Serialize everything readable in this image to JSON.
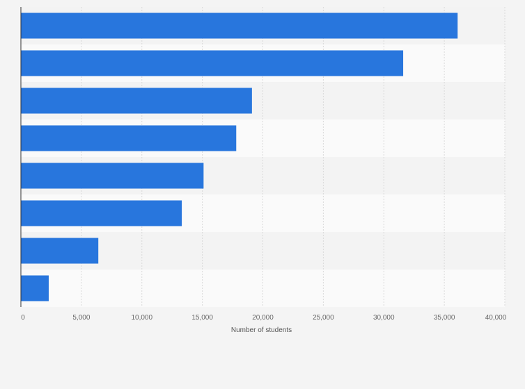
{
  "chart_data": {
    "type": "bar",
    "orientation": "horizontal",
    "categories": [
      "",
      "",
      "",
      "",
      "",
      "",
      "",
      ""
    ],
    "values": [
      36100,
      31600,
      19100,
      17800,
      15100,
      13300,
      6400,
      2300
    ],
    "xlabel": "Number of students",
    "ylabel": "",
    "xlim": [
      0,
      40000
    ],
    "xticks": [
      0,
      5000,
      10000,
      15000,
      20000,
      25000,
      30000,
      35000,
      40000
    ],
    "xtick_labels": [
      "0",
      "5,000",
      "10,000",
      "15,000",
      "20,000",
      "25,000",
      "30,000",
      "35,000",
      "40,000"
    ],
    "grid": true,
    "bar_color": "#2876dd",
    "band_colors": [
      "#f3f3f3",
      "#fafafa"
    ]
  }
}
